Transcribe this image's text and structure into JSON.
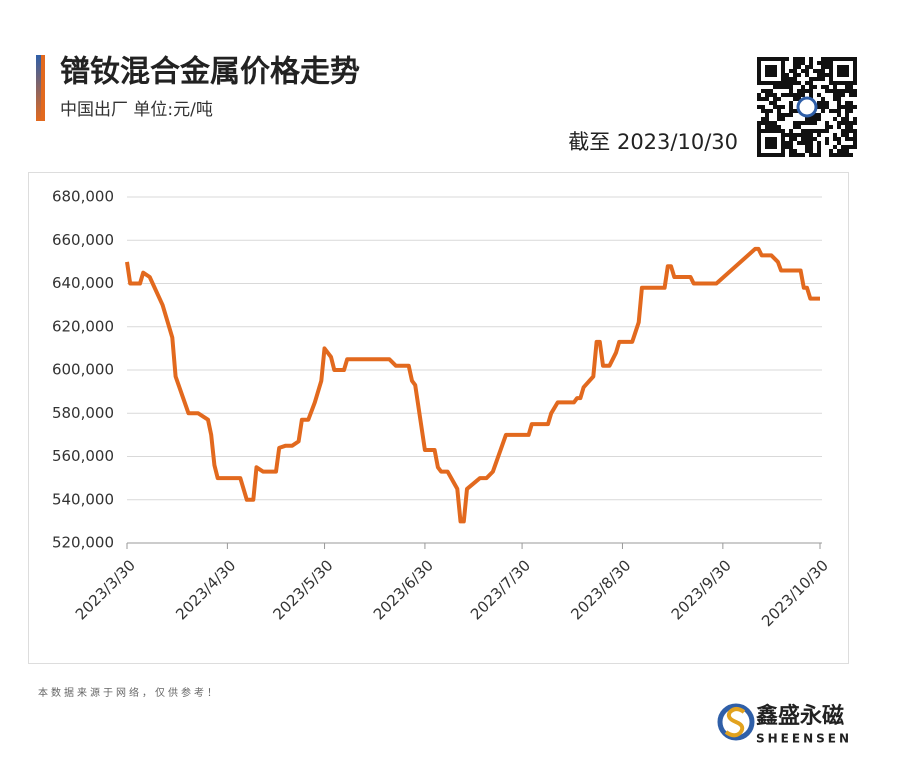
{
  "chart_data": {
    "type": "line",
    "title": "镨钕混合金属价格走势",
    "subtitle": "中国出厂  单位:元/吨",
    "date_note": "截至 2023/10/30",
    "source_note": "本数据来源于网络，仅供参考！",
    "brand": "鑫盛永磁",
    "brand_en": "SHEENSEN",
    "x": [
      "2023/3/30",
      "2023/3/31",
      "2023/4/3",
      "2023/4/4",
      "2023/4/6",
      "2023/4/10",
      "2023/4/13",
      "2023/4/14",
      "2023/4/18",
      "2023/4/21",
      "2023/4/24",
      "2023/4/25",
      "2023/4/26",
      "2023/4/27",
      "2023/5/4",
      "2023/5/6",
      "2023/5/8",
      "2023/5/9",
      "2023/5/11",
      "2023/5/15",
      "2023/5/16",
      "2023/5/18",
      "2023/5/20",
      "2023/5/22",
      "2023/5/23",
      "2023/5/25",
      "2023/5/27",
      "2023/5/29",
      "2023/5/30",
      "2023/6/1",
      "2023/6/2",
      "2023/6/5",
      "2023/6/6",
      "2023/6/19",
      "2023/6/21",
      "2023/6/25",
      "2023/6/26",
      "2023/6/27",
      "2023/6/30",
      "2023/7/3",
      "2023/7/4",
      "2023/7/5",
      "2023/7/7",
      "2023/7/10",
      "2023/7/11",
      "2023/7/12",
      "2023/7/13",
      "2023/7/17",
      "2023/7/19",
      "2023/7/21",
      "2023/7/25",
      "2023/8/1",
      "2023/8/2",
      "2023/8/7",
      "2023/8/8",
      "2023/8/10",
      "2023/8/15",
      "2023/8/16",
      "2023/8/17",
      "2023/8/18",
      "2023/8/21",
      "2023/8/22",
      "2023/8/23",
      "2023/8/24",
      "2023/8/26",
      "2023/8/28",
      "2023/8/29",
      "2023/9/2",
      "2023/9/4",
      "2023/9/5",
      "2023/9/12",
      "2023/9/13",
      "2023/9/14",
      "2023/9/15",
      "2023/9/20",
      "2023/9/21",
      "2023/9/28",
      "2023/10/10",
      "2023/10/11",
      "2023/10/12",
      "2023/10/15",
      "2023/10/17",
      "2023/10/18",
      "2023/10/24",
      "2023/10/25",
      "2023/10/26",
      "2023/10/27",
      "2023/10/30"
    ],
    "series": [
      {
        "name": "镨钕混合金属",
        "color": "#e2691e",
        "values": [
          650000,
          640000,
          640000,
          645000,
          643000,
          630000,
          615000,
          597000,
          580000,
          580000,
          577000,
          570000,
          556000,
          550000,
          550000,
          540000,
          540000,
          555000,
          553000,
          553000,
          564000,
          565000,
          565000,
          567000,
          577000,
          577000,
          585000,
          595000,
          610000,
          606000,
          600000,
          600000,
          605000,
          605000,
          602000,
          602000,
          595000,
          593000,
          563000,
          563000,
          555000,
          553000,
          553000,
          545000,
          530000,
          530000,
          545000,
          550000,
          550000,
          553000,
          570000,
          570000,
          575000,
          575000,
          580000,
          585000,
          585000,
          587000,
          587000,
          592000,
          597000,
          613000,
          613000,
          602000,
          602000,
          608000,
          613000,
          613000,
          622000,
          638000,
          638000,
          648000,
          648000,
          643000,
          643000,
          640000,
          640000,
          656000,
          656000,
          653000,
          653000,
          650000,
          646000,
          646000,
          638000,
          638000,
          633000,
          633000
        ]
      }
    ],
    "xlim": [
      "2023/3/30",
      "2023/10/30"
    ],
    "xticks": [
      "2023/3/30",
      "2023/4/30",
      "2023/5/30",
      "2023/6/30",
      "2023/7/30",
      "2023/8/30",
      "2023/9/30",
      "2023/10/30"
    ],
    "ylim": [
      520000,
      680000
    ],
    "yticks": [
      {
        "value": 520000,
        "label": "520,000"
      },
      {
        "value": 540000,
        "label": "540,000"
      },
      {
        "value": 560000,
        "label": "560,000"
      },
      {
        "value": 580000,
        "label": "580,000"
      },
      {
        "value": 600000,
        "label": "600,000"
      },
      {
        "value": 620000,
        "label": "620,000"
      },
      {
        "value": 640000,
        "label": "640,000"
      },
      {
        "value": 660000,
        "label": "660,000"
      },
      {
        "value": 680000,
        "label": "680,000"
      }
    ],
    "grid": true
  }
}
